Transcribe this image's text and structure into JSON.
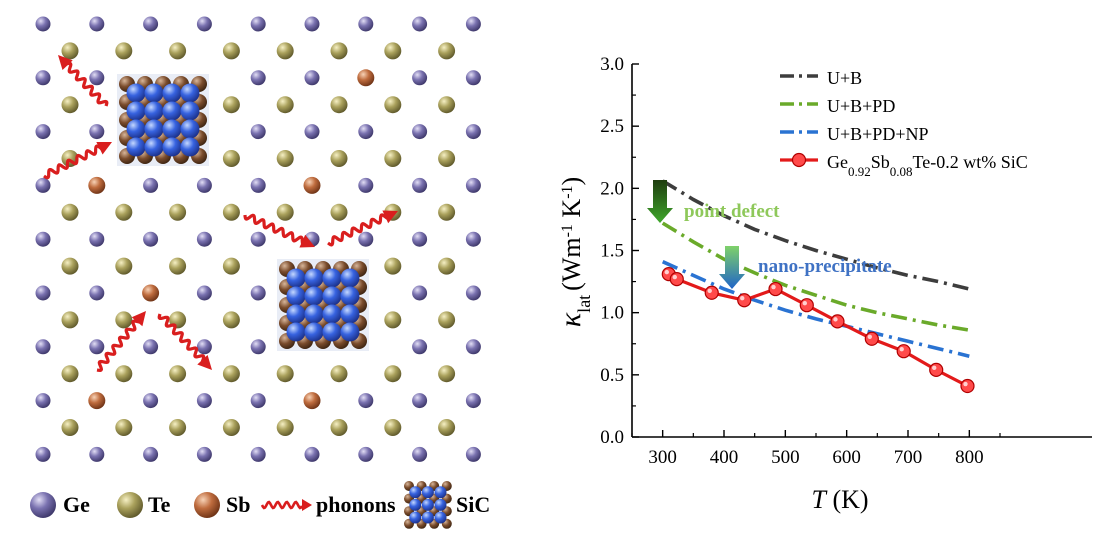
{
  "schematic": {
    "legend": [
      {
        "id": "ge",
        "label": "Ge",
        "color": "#6f66a6"
      },
      {
        "id": "te",
        "label": "Te",
        "color": "#a39a55"
      },
      {
        "id": "sb",
        "label": "Sb",
        "color": "#b8653a"
      },
      {
        "id": "phonons",
        "label": "phonons",
        "color": "#d91e1e"
      },
      {
        "id": "sic",
        "label": "SiC",
        "color": "#2f57d8"
      }
    ]
  },
  "chart_data": {
    "type": "line",
    "xlabel": "T (K)",
    "xlabel_parts": {
      "symbol": "T",
      "unit": " (K)"
    },
    "ylabel_parts": {
      "kappa": "κ",
      "sub": "lat",
      "open": "(Wm",
      "sup1": "-1",
      "mid": " K",
      "sup2": "-1",
      "close": ")"
    },
    "xlim": [
      250,
      1000
    ],
    "ylim": [
      0,
      3.0
    ],
    "xticks": [
      300,
      400,
      500,
      600,
      700,
      800
    ],
    "yticks": [
      0.0,
      0.5,
      1.0,
      1.5,
      2.0,
      2.5,
      3.0
    ],
    "ytick_labels": [
      "0.0",
      "0.5",
      "1.0",
      "1.5",
      "2.0",
      "2.5",
      "3.0"
    ],
    "legend_placement": "top-right",
    "series": [
      {
        "name": "U+B",
        "style": "dashdot",
        "color": "#3d3d3d",
        "x": [
          300,
          350,
          400,
          450,
          500,
          550,
          600,
          650,
          700,
          750,
          800
        ],
        "y": [
          2.06,
          1.91,
          1.78,
          1.67,
          1.58,
          1.5,
          1.43,
          1.36,
          1.3,
          1.25,
          1.19
        ]
      },
      {
        "name": "U+B+PD",
        "style": "dashdot",
        "color": "#6aaa2a",
        "x": [
          300,
          350,
          400,
          450,
          500,
          550,
          600,
          650,
          700,
          750,
          800
        ],
        "y": [
          1.72,
          1.57,
          1.43,
          1.32,
          1.22,
          1.14,
          1.06,
          1.0,
          0.95,
          0.9,
          0.86
        ]
      },
      {
        "name": "U+B+PD+NP",
        "style": "dashdot",
        "color": "#2a73d2",
        "x": [
          300,
          350,
          400,
          450,
          500,
          550,
          600,
          650,
          700,
          750,
          800
        ],
        "y": [
          1.41,
          1.3,
          1.19,
          1.1,
          1.02,
          0.95,
          0.89,
          0.83,
          0.77,
          0.71,
          0.65
        ]
      },
      {
        "name_parts": {
          "a": "Ge",
          "s1": "0.92",
          "b": "Sb",
          "s2": "0.08",
          "c": "Te-0.2 wt% SiC"
        },
        "style": "solid-markers",
        "color": "#e31a1a",
        "x": [
          310,
          323,
          380,
          433,
          484,
          535,
          585,
          641,
          693,
          746,
          797
        ],
        "y": [
          1.31,
          1.27,
          1.16,
          1.1,
          1.19,
          1.06,
          0.93,
          0.79,
          0.69,
          0.54,
          0.41
        ]
      }
    ],
    "annotations": [
      {
        "id": "point-defect",
        "text": "point defect",
        "color": "#8ec85a"
      },
      {
        "id": "nano-precipitate",
        "text": "nano-precipitate",
        "color": "#3f72c4"
      }
    ]
  }
}
